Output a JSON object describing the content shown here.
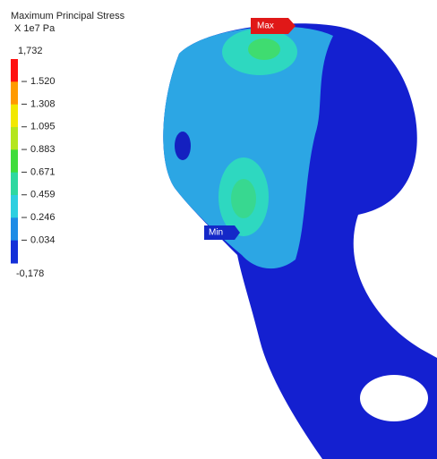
{
  "legend": {
    "title": "Maximum Principal Stress",
    "unit": "X 1e7 Pa",
    "labels": [
      "1,732",
      "1.520",
      "1.308",
      "1.095",
      "0.883",
      "0.671",
      "0.459",
      "0.246",
      "0.034",
      "-0,178"
    ],
    "colors": [
      "#ff1010",
      "#ff9a00",
      "#f2e800",
      "#b4e61e",
      "#3fdc3c",
      "#2ed8a0",
      "#2ecfe0",
      "#1e8ce6",
      "#1430d8"
    ]
  },
  "markers": {
    "max": "Max",
    "min": "Min"
  }
}
